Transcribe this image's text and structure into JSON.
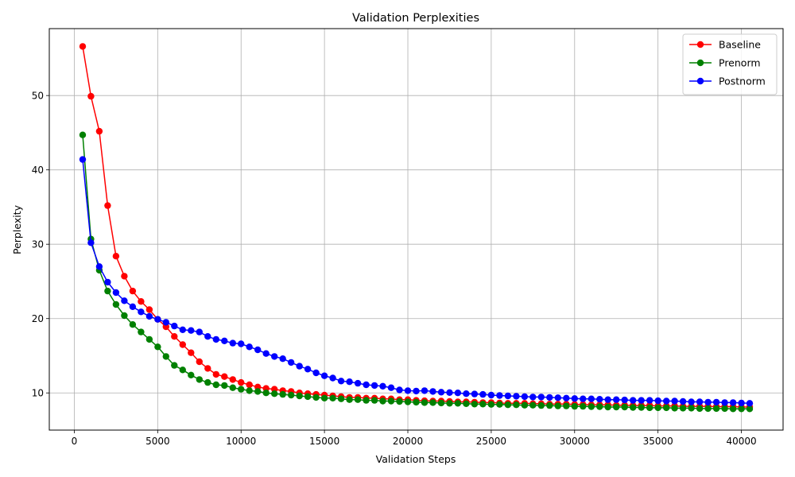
{
  "chart_data": {
    "type": "line",
    "title": "Validation Perplexities",
    "xlabel": "Validation Steps",
    "ylabel": "Perplexity",
    "xlim": [
      -1500,
      42500
    ],
    "ylim": [
      5,
      59
    ],
    "xticks": [
      0,
      5000,
      10000,
      15000,
      20000,
      25000,
      30000,
      35000,
      40000
    ],
    "yticks": [
      10,
      20,
      30,
      40,
      50
    ],
    "grid": true,
    "legend_position": "top-right",
    "x_start": 500,
    "x_step": 500,
    "series": [
      {
        "name": "Baseline",
        "color": "#ff0000",
        "values": [
          56.6,
          49.9,
          45.2,
          35.2,
          28.4,
          25.7,
          23.7,
          22.3,
          21.2,
          19.9,
          18.9,
          17.6,
          16.5,
          15.4,
          14.2,
          13.3,
          12.5,
          12.2,
          11.8,
          11.4,
          11.1,
          10.8,
          10.6,
          10.5,
          10.3,
          10.2,
          10.0,
          9.9,
          9.8,
          9.7,
          9.6,
          9.5,
          9.4,
          9.4,
          9.3,
          9.3,
          9.2,
          9.2,
          9.1,
          9.1,
          9.0,
          8.95,
          8.9,
          8.9,
          8.85,
          8.8,
          8.8,
          8.75,
          8.7,
          8.7,
          8.65,
          8.6,
          8.6,
          8.6,
          8.55,
          8.55,
          8.5,
          8.5,
          8.5,
          8.45,
          8.45,
          8.4,
          8.4,
          8.4,
          8.35,
          8.35,
          8.3,
          8.3,
          8.3,
          8.25,
          8.25,
          8.25,
          8.2,
          8.2,
          8.2,
          8.2,
          8.15,
          8.15,
          8.15,
          8.1,
          8.1
        ]
      },
      {
        "name": "Prenorm",
        "color": "#008000",
        "values": [
          44.7,
          30.7,
          26.5,
          23.7,
          21.9,
          20.4,
          19.2,
          18.2,
          17.2,
          16.2,
          14.9,
          13.7,
          13.1,
          12.4,
          11.8,
          11.4,
          11.1,
          11.0,
          10.7,
          10.5,
          10.3,
          10.2,
          10.0,
          9.9,
          9.8,
          9.7,
          9.6,
          9.5,
          9.4,
          9.3,
          9.3,
          9.2,
          9.1,
          9.1,
          9.0,
          9.0,
          8.9,
          8.9,
          8.85,
          8.8,
          8.75,
          8.7,
          8.7,
          8.65,
          8.6,
          8.6,
          8.55,
          8.5,
          8.5,
          8.45,
          8.45,
          8.4,
          8.4,
          8.35,
          8.35,
          8.3,
          8.3,
          8.25,
          8.25,
          8.2,
          8.2,
          8.15,
          8.15,
          8.1,
          8.1,
          8.1,
          8.05,
          8.05,
          8.0,
          8.0,
          8.0,
          7.95,
          7.95,
          7.95,
          7.9,
          7.9,
          7.9,
          7.9,
          7.85,
          7.85,
          7.85
        ]
      },
      {
        "name": "Postnorm",
        "color": "#0000ff",
        "values": [
          41.4,
          30.2,
          27.0,
          24.9,
          23.5,
          22.4,
          21.6,
          20.9,
          20.3,
          19.9,
          19.5,
          19.0,
          18.5,
          18.4,
          18.2,
          17.6,
          17.2,
          17.0,
          16.7,
          16.6,
          16.2,
          15.8,
          15.3,
          14.9,
          14.6,
          14.1,
          13.6,
          13.2,
          12.7,
          12.3,
          12.0,
          11.6,
          11.5,
          11.3,
          11.1,
          11.0,
          10.9,
          10.7,
          10.4,
          10.3,
          10.25,
          10.3,
          10.2,
          10.1,
          10.05,
          10.0,
          9.9,
          9.85,
          9.8,
          9.7,
          9.65,
          9.6,
          9.55,
          9.5,
          9.45,
          9.45,
          9.4,
          9.35,
          9.3,
          9.25,
          9.2,
          9.2,
          9.15,
          9.1,
          9.1,
          9.05,
          9.0,
          9.0,
          9.0,
          8.95,
          8.9,
          8.9,
          8.85,
          8.8,
          8.8,
          8.75,
          8.75,
          8.7,
          8.7,
          8.65,
          8.6
        ]
      }
    ]
  }
}
